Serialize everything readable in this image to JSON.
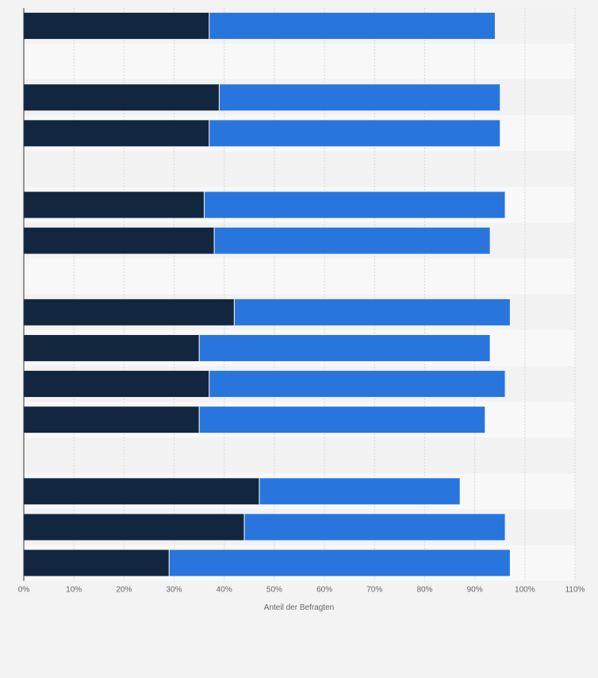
{
  "chart_data": {
    "type": "bar",
    "orientation": "horizontal",
    "stacked": true,
    "categories": [
      "",
      "",
      "",
      "",
      "",
      "",
      "",
      "",
      "",
      "",
      "",
      "",
      "",
      "",
      "",
      ""
    ],
    "series": [
      {
        "color": "#12263f",
        "values": [
          37,
          null,
          39,
          37,
          null,
          36,
          38,
          null,
          42,
          35,
          37,
          35,
          null,
          47,
          44,
          29
        ]
      },
      {
        "color": "#2876dd",
        "values": [
          57,
          null,
          56,
          58,
          null,
          60,
          55,
          null,
          55,
          58,
          59,
          57,
          null,
          40,
          52,
          68
        ]
      }
    ],
    "xlabel": "Anteil der Befragten",
    "xlim": [
      0,
      110
    ],
    "xticks": [
      0,
      10,
      20,
      30,
      40,
      50,
      60,
      70,
      80,
      90,
      100,
      110
    ],
    "xtick_labels": [
      "0%",
      "10%",
      "20%",
      "30%",
      "40%",
      "50%",
      "60%",
      "70%",
      "80%",
      "90%",
      "100%",
      "110%"
    ],
    "grid": true,
    "legend": "none"
  }
}
